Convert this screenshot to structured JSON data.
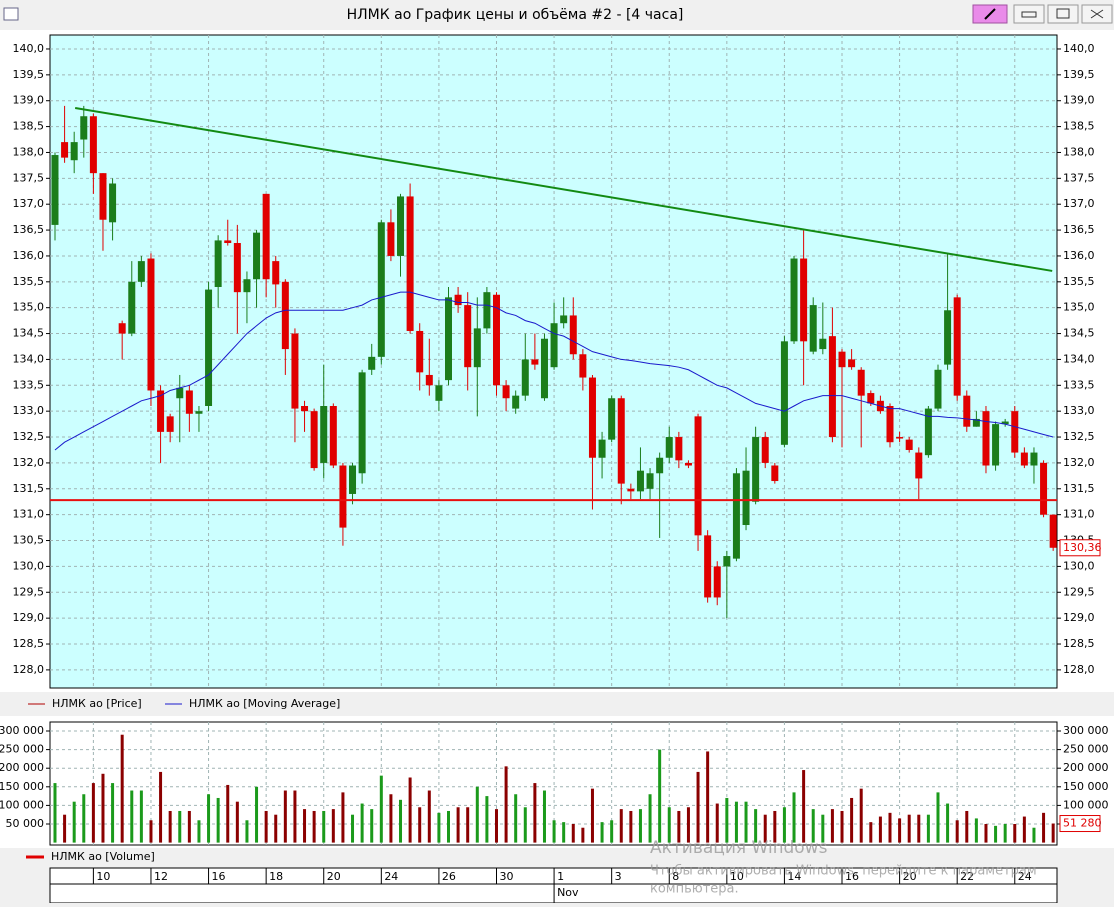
{
  "window_title": "НЛМК ао График цены и объёма #2 - [4 часа]",
  "overlay": [
    "Активация Windows",
    "Чтобы активировать Windows, перейдите к параметрам",
    "компьютера."
  ],
  "chart_data": [
    {
      "type": "candlestick",
      "xlim": [
        -0.52,
        104.4
      ],
      "ylim": [
        127.65,
        140.27
      ],
      "grid": true,
      "up_color": "#1b7d1b",
      "down_color": "#e00000",
      "yticks": [
        {
          "value": 128,
          "label": "128,0"
        },
        {
          "value": 128.5,
          "label": "128,5"
        },
        {
          "value": 129,
          "label": "129,0"
        },
        {
          "value": 129.5,
          "label": "129,5"
        },
        {
          "value": 130,
          "label": "130,0"
        },
        {
          "value": 130.5,
          "label": "130,5"
        },
        {
          "value": 131,
          "label": "131,0"
        },
        {
          "value": 131.5,
          "label": "131,5"
        },
        {
          "value": 132,
          "label": "132,0"
        },
        {
          "value": 132.5,
          "label": "132,5"
        },
        {
          "value": 133,
          "label": "133,0"
        },
        {
          "value": 133.5,
          "label": "133,5"
        },
        {
          "value": 134,
          "label": "134,0"
        },
        {
          "value": 134.5,
          "label": "134,5"
        },
        {
          "value": 135,
          "label": "135,0"
        },
        {
          "value": 135.5,
          "label": "135,5"
        },
        {
          "value": 136,
          "label": "136,0"
        },
        {
          "value": 136.5,
          "label": "136,5"
        },
        {
          "value": 137,
          "label": "137,0"
        },
        {
          "value": 137.5,
          "label": "137,5"
        },
        {
          "value": 138,
          "label": "138,0"
        },
        {
          "value": 138.5,
          "label": "138,5"
        },
        {
          "value": 139,
          "label": "139,0"
        },
        {
          "value": 139.5,
          "label": "139,5"
        },
        {
          "value": 140,
          "label": "140,0"
        }
      ],
      "xticks": [
        {
          "value": 4,
          "label": "10"
        },
        {
          "value": 10,
          "label": "12"
        },
        {
          "value": 16,
          "label": "16"
        },
        {
          "value": 22,
          "label": "18"
        },
        {
          "value": 28,
          "label": "20"
        },
        {
          "value": 34,
          "label": "24"
        },
        {
          "value": 40,
          "label": "26"
        },
        {
          "value": 46,
          "label": "30"
        },
        {
          "value": 52,
          "label": "1"
        },
        {
          "value": 58,
          "label": "3"
        },
        {
          "value": 64,
          "label": "8"
        },
        {
          "value": 70,
          "label": "10"
        },
        {
          "value": 76,
          "label": "14"
        },
        {
          "value": 82,
          "label": "16"
        },
        {
          "value": 88,
          "label": "20"
        },
        {
          "value": 94,
          "label": "22"
        },
        {
          "value": 100,
          "label": "24"
        }
      ],
      "month_ticks": [
        {
          "value": 52,
          "label": "Nov"
        }
      ],
      "series": [
        {
          "name": "НЛМК ао [Price]",
          "color": "#b00000",
          "last_value_label": "130,36",
          "open": [
            136.6,
            138.2,
            137.85,
            138.25,
            138.7,
            137.6,
            136.65,
            134.7,
            134.5,
            135.5,
            135.95,
            133.4,
            132.9,
            133.25,
            133.4,
            132.95,
            133.1,
            135.4,
            136.3,
            136.25,
            135.3,
            135.55,
            137.2,
            135.9,
            135.5,
            134.5,
            133.1,
            133.0,
            132.0,
            133.1,
            131.95,
            131.4,
            131.8,
            133.8,
            134.05,
            136.65,
            136.0,
            137.15,
            134.55,
            133.7,
            133.2,
            133.6,
            135.25,
            135.05,
            133.85,
            134.6,
            135.25,
            133.5,
            133.05,
            133.3,
            134.0,
            133.25,
            133.85,
            134.7,
            134.85,
            134.1,
            133.65,
            132.1,
            132.45,
            133.25,
            131.5,
            131.45,
            131.5,
            131.8,
            132.1,
            132.5,
            132.0,
            132.9,
            130.6,
            130.0,
            130.0,
            130.15,
            130.8,
            131.25,
            132.5,
            131.95,
            132.35,
            134.35,
            135.95,
            134.15,
            134.2,
            134.45,
            134.15,
            134.0,
            133.8,
            133.35,
            133.2,
            133.1,
            132.5,
            132.45,
            132.2,
            132.15,
            133.05,
            133.9,
            135.2,
            133.3,
            132.7,
            133.0,
            131.95,
            132.75,
            133.0,
            132.2,
            131.95,
            132.0,
            131.0
          ],
          "high": [
            138.0,
            138.9,
            138.4,
            138.9,
            138.75,
            137.6,
            137.5,
            134.75,
            135.9,
            136.0,
            136.05,
            133.5,
            132.95,
            133.7,
            133.5,
            133.1,
            135.5,
            136.4,
            136.7,
            136.6,
            135.7,
            136.5,
            137.2,
            136.0,
            135.55,
            134.6,
            133.2,
            133.05,
            133.9,
            133.15,
            132.0,
            132.0,
            133.8,
            134.3,
            136.7,
            136.9,
            137.2,
            137.4,
            134.7,
            134.4,
            133.6,
            135.4,
            135.4,
            135.3,
            135.2,
            135.4,
            135.3,
            133.6,
            133.4,
            134.5,
            134.5,
            134.5,
            135.1,
            135.2,
            135.2,
            134.2,
            133.7,
            132.6,
            133.3,
            133.3,
            131.6,
            132.3,
            131.9,
            132.2,
            132.7,
            132.6,
            132.05,
            132.95,
            130.7,
            130.1,
            130.3,
            131.9,
            132.3,
            132.7,
            132.6,
            132.0,
            134.45,
            136.0,
            136.5,
            135.2,
            135.1,
            135.0,
            134.2,
            134.2,
            133.85,
            133.4,
            133.3,
            133.15,
            132.6,
            132.5,
            132.3,
            133.1,
            133.9,
            136.05,
            135.25,
            133.4,
            133.0,
            133.1,
            132.8,
            132.85,
            133.1,
            132.3,
            132.3,
            132.05,
            131.0
          ],
          "low": [
            136.3,
            137.8,
            137.6,
            137.9,
            137.2,
            136.1,
            136.3,
            134.0,
            134.45,
            135.4,
            133.1,
            132.0,
            132.4,
            132.4,
            132.6,
            132.6,
            133.0,
            135.0,
            136.2,
            134.5,
            134.7,
            135.0,
            135.2,
            135.0,
            133.7,
            132.4,
            132.6,
            131.85,
            131.7,
            131.9,
            130.4,
            131.2,
            131.6,
            133.7,
            133.9,
            135.9,
            135.6,
            134.5,
            133.4,
            133.3,
            133.0,
            133.5,
            134.9,
            133.4,
            132.9,
            134.5,
            133.3,
            133.0,
            132.95,
            133.2,
            133.8,
            133.2,
            133.8,
            134.6,
            134.0,
            133.4,
            131.1,
            131.7,
            132.4,
            131.2,
            131.3,
            131.3,
            131.3,
            130.55,
            132.0,
            131.9,
            131.9,
            130.3,
            129.3,
            129.25,
            129.0,
            130.1,
            130.7,
            131.2,
            131.9,
            131.6,
            132.3,
            134.3,
            133.5,
            134.1,
            134.1,
            132.4,
            132.3,
            133.8,
            132.3,
            133.1,
            132.95,
            132.3,
            132.4,
            132.2,
            131.3,
            132.1,
            133.0,
            133.8,
            133.2,
            132.6,
            132.7,
            131.8,
            131.85,
            132.7,
            132.1,
            131.9,
            131.6,
            130.95,
            130.3
          ],
          "close": [
            137.95,
            137.9,
            138.2,
            138.7,
            137.6,
            136.7,
            137.4,
            134.5,
            135.5,
            135.9,
            133.4,
            132.6,
            132.6,
            133.45,
            132.95,
            133.0,
            135.35,
            136.3,
            136.25,
            135.3,
            135.55,
            136.45,
            135.55,
            135.45,
            134.2,
            133.05,
            133.0,
            131.9,
            133.1,
            131.95,
            130.75,
            131.95,
            133.75,
            134.05,
            136.65,
            136.0,
            137.15,
            134.55,
            133.75,
            133.5,
            133.5,
            135.2,
            135.05,
            133.85,
            134.6,
            135.3,
            133.5,
            133.25,
            133.3,
            134.0,
            133.9,
            134.4,
            134.7,
            134.85,
            134.1,
            133.65,
            132.1,
            132.45,
            133.25,
            131.6,
            131.45,
            131.85,
            131.8,
            132.1,
            132.5,
            132.05,
            131.95,
            130.6,
            129.4,
            129.4,
            130.2,
            131.8,
            131.85,
            132.5,
            132.0,
            131.65,
            134.35,
            135.95,
            134.35,
            135.05,
            134.4,
            132.5,
            133.85,
            133.85,
            133.3,
            133.15,
            133.0,
            132.4,
            132.5,
            132.25,
            131.7,
            133.05,
            133.8,
            134.95,
            133.3,
            132.7,
            132.85,
            131.95,
            132.75,
            132.8,
            132.2,
            131.95,
            132.2,
            131.0,
            130.36
          ]
        },
        {
          "name": "НЛМК ао [Moving Average]",
          "color": "#1a1acc",
          "values": [
            132.25,
            132.4,
            132.5,
            132.6,
            132.7,
            132.8,
            132.9,
            133.0,
            133.1,
            133.2,
            133.25,
            133.3,
            133.4,
            133.45,
            133.5,
            133.6,
            133.7,
            133.9,
            134.1,
            134.3,
            134.5,
            134.65,
            134.8,
            134.9,
            134.95,
            134.95,
            134.95,
            134.95,
            134.95,
            134.95,
            134.95,
            135.0,
            135.05,
            135.15,
            135.2,
            135.25,
            135.3,
            135.3,
            135.25,
            135.2,
            135.15,
            135.15,
            135.1,
            135.1,
            135.05,
            135.05,
            135.0,
            134.9,
            134.85,
            134.75,
            134.7,
            134.6,
            134.5,
            134.45,
            134.35,
            134.25,
            134.15,
            134.1,
            134.05,
            134.0,
            133.98,
            133.95,
            133.92,
            133.9,
            133.88,
            133.85,
            133.8,
            133.7,
            133.6,
            133.5,
            133.45,
            133.35,
            133.25,
            133.15,
            133.1,
            133.05,
            133.0,
            133.1,
            133.2,
            133.25,
            133.3,
            133.3,
            133.3,
            133.25,
            133.2,
            133.15,
            133.1,
            133.05,
            133.05,
            133.0,
            132.95,
            132.9,
            132.9,
            132.88,
            132.87,
            132.85,
            132.83,
            132.8,
            132.78,
            132.75,
            132.7,
            132.65,
            132.6,
            132.55,
            132.5
          ]
        }
      ],
      "annotation_lines": [
        {
          "color": "#138a13",
          "x": [
            2.1,
            103.9
          ],
          "y": [
            138.86,
            135.71
          ]
        },
        {
          "color": "#e81010",
          "x": [
            -0.52,
            104.4
          ],
          "y": [
            131.28,
            131.28
          ]
        }
      ]
    },
    {
      "type": "bar",
      "ylim": [
        -6450,
        324200
      ],
      "grid": true,
      "yticks": [
        {
          "value": 50000,
          "label": "50 000"
        },
        {
          "value": 100000,
          "label": "100 000"
        },
        {
          "value": 150000,
          "label": "150 000"
        },
        {
          "value": 200000,
          "label": "200 000"
        },
        {
          "value": 250000,
          "label": "250 000"
        },
        {
          "value": 300000,
          "label": "300 000"
        }
      ],
      "series": [
        {
          "name": "НЛМК ао [Volume]",
          "color": "#e00000",
          "up_color": "#1b9a1b",
          "down_color": "#8b0000",
          "last_value_label": "51 280",
          "values": [
            160000,
            75000,
            110000,
            130000,
            160000,
            185000,
            160000,
            290000,
            140000,
            140000,
            60000,
            190000,
            85000,
            85000,
            85000,
            60000,
            130000,
            120000,
            155000,
            110000,
            60000,
            150000,
            85000,
            75000,
            140000,
            140000,
            90000,
            85000,
            85000,
            90000,
            135000,
            75000,
            105000,
            90000,
            180000,
            130000,
            115000,
            175000,
            95000,
            140000,
            80000,
            85000,
            95000,
            95000,
            150000,
            125000,
            90000,
            205000,
            130000,
            95000,
            160000,
            140000,
            60000,
            55000,
            50000,
            40000,
            145000,
            55000,
            60000,
            90000,
            85000,
            90000,
            130000,
            250000,
            95000,
            85000,
            95000,
            190000,
            245000,
            105000,
            120000,
            110000,
            110000,
            90000,
            75000,
            85000,
            95000,
            135000,
            195000,
            90000,
            75000,
            90000,
            85000,
            120000,
            145000,
            55000,
            70000,
            80000,
            65000,
            75000,
            75000,
            75000,
            135000,
            105000,
            60000,
            85000,
            65000,
            50000,
            45000,
            50000,
            50000,
            70000,
            40000,
            80000,
            51280
          ]
        }
      ]
    }
  ]
}
